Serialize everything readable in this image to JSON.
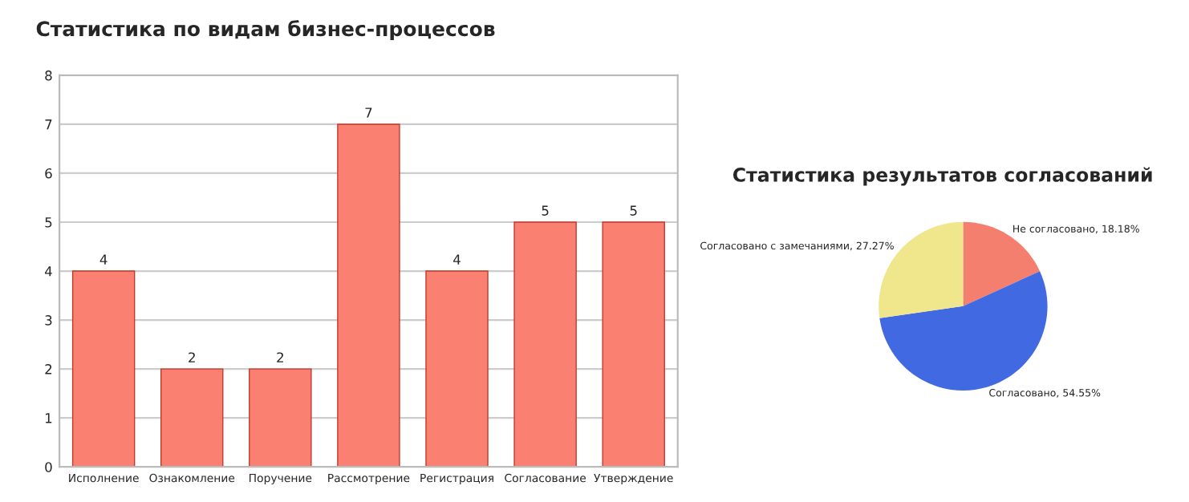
{
  "chart_data": [
    {
      "type": "bar",
      "title": "Статистика по видам бизнес-процессов",
      "categories": [
        "Исполнение",
        "Ознакомление",
        "Поручение",
        "Рассмотрение",
        "Регистрация",
        "Согласование",
        "Утверждение"
      ],
      "values": [
        4,
        2,
        2,
        7,
        4,
        5,
        5
      ],
      "color": "#fa8072",
      "ylim": [
        0,
        8
      ],
      "yticks": [
        0,
        1,
        2,
        3,
        4,
        5,
        6,
        7,
        8
      ],
      "grid": "y",
      "data_labels": true
    },
    {
      "type": "pie",
      "title": "Статистика результатов согласований",
      "categories": [
        "Не согласовано",
        "Согласовано",
        "Согласовано с замечаниями"
      ],
      "values": [
        18.18,
        54.55,
        27.27
      ],
      "value_labels": [
        "18.18%",
        "54.55%",
        "27.27%"
      ],
      "colors": [
        "#f47f6e",
        "#4169e1",
        "#f0e68c"
      ]
    }
  ]
}
